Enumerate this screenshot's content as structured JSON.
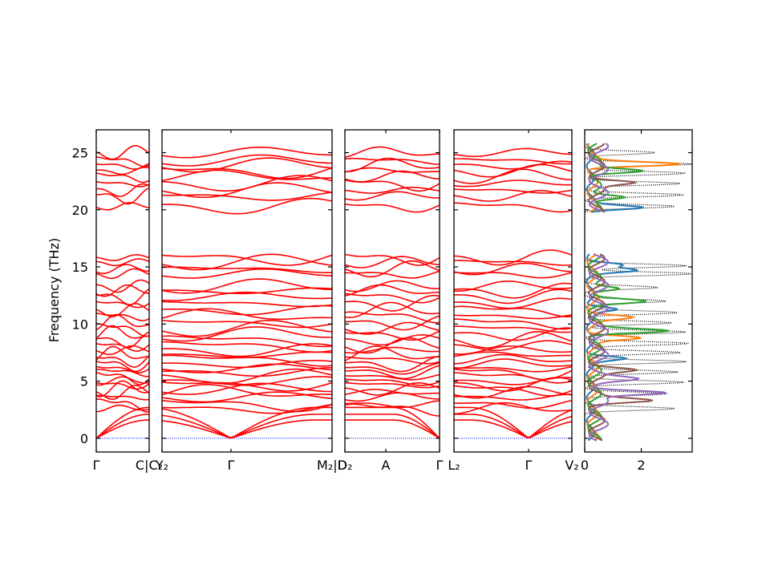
{
  "chart_data": {
    "type": "line",
    "ylabel": "Frequency (THz)",
    "ylim": [
      -1.2,
      27
    ],
    "yticks": [
      0,
      5,
      10,
      15,
      20,
      25
    ],
    "band_color": "#ff0000",
    "zero_line_color": "#0000ff",
    "panels": [
      {
        "id": "p1",
        "x_labels": [
          "Γ",
          "C|C₂"
        ]
      },
      {
        "id": "p2",
        "x_labels": [
          "Y₂",
          "Γ",
          "M₂|D"
        ]
      },
      {
        "id": "p3",
        "x_labels": [
          "D₂",
          "A",
          "Γ"
        ]
      },
      {
        "id": "p4",
        "x_labels": [
          "L₂",
          "Γ",
          "V₂"
        ]
      }
    ],
    "dos": {
      "xlim": [
        0,
        3.8
      ],
      "xticks": [
        0,
        2
      ],
      "total_color": "#000000",
      "total_style": "dotted",
      "projection_colors": [
        "#1f77b4",
        "#ff7f0e",
        "#2ca02c",
        "#8c564b",
        "#9467bd"
      ],
      "total_peaks": [
        {
          "f": 2.6,
          "d": 3.2
        },
        {
          "f": 3.9,
          "d": 2.9
        },
        {
          "f": 4.9,
          "d": 3.5
        },
        {
          "f": 5.8,
          "d": 3.3
        },
        {
          "f": 6.7,
          "d": 3.6
        },
        {
          "f": 7.5,
          "d": 3.4
        },
        {
          "f": 8.3,
          "d": 3.7
        },
        {
          "f": 9.3,
          "d": 3.6
        },
        {
          "f": 10.1,
          "d": 3.1
        },
        {
          "f": 11.0,
          "d": 3.3
        },
        {
          "f": 12.0,
          "d": 2.9
        },
        {
          "f": 13.2,
          "d": 2.6
        },
        {
          "f": 14.4,
          "d": 3.8
        },
        {
          "f": 15.1,
          "d": 3.6
        },
        {
          "f": 20.3,
          "d": 3.2
        },
        {
          "f": 21.3,
          "d": 3.5
        },
        {
          "f": 22.3,
          "d": 3.4
        },
        {
          "f": 23.2,
          "d": 3.6
        },
        {
          "f": 24.0,
          "d": 3.8
        },
        {
          "f": 25.0,
          "d": 2.5
        }
      ],
      "projected_peaks": [
        {
          "f": 4.0,
          "d": 2.6,
          "c": 4
        },
        {
          "f": 3.3,
          "d": 1.8,
          "c": 3
        },
        {
          "f": 9.4,
          "d": 2.7,
          "c": 2
        },
        {
          "f": 8.8,
          "d": 1.7,
          "c": 1
        },
        {
          "f": 12.0,
          "d": 1.6,
          "c": 2
        },
        {
          "f": 13.1,
          "d": 1.1,
          "c": 2
        },
        {
          "f": 14.7,
          "d": 1.5,
          "c": 0
        },
        {
          "f": 15.2,
          "d": 1.1,
          "c": 0
        },
        {
          "f": 20.2,
          "d": 1.9,
          "c": 0
        },
        {
          "f": 21.1,
          "d": 1.3,
          "c": 2
        },
        {
          "f": 23.4,
          "d": 1.9,
          "c": 2
        },
        {
          "f": 24.0,
          "d": 3.1,
          "c": 1
        },
        {
          "f": 22.4,
          "d": 1.4,
          "c": 3
        },
        {
          "f": 6.0,
          "d": 1.3,
          "c": 3
        },
        {
          "f": 7.0,
          "d": 1.2,
          "c": 0
        },
        {
          "f": 5.2,
          "d": 1.1,
          "c": 4
        },
        {
          "f": 10.6,
          "d": 1.3,
          "c": 1
        },
        {
          "f": 11.3,
          "d": 1.0,
          "c": 0
        }
      ]
    }
  }
}
